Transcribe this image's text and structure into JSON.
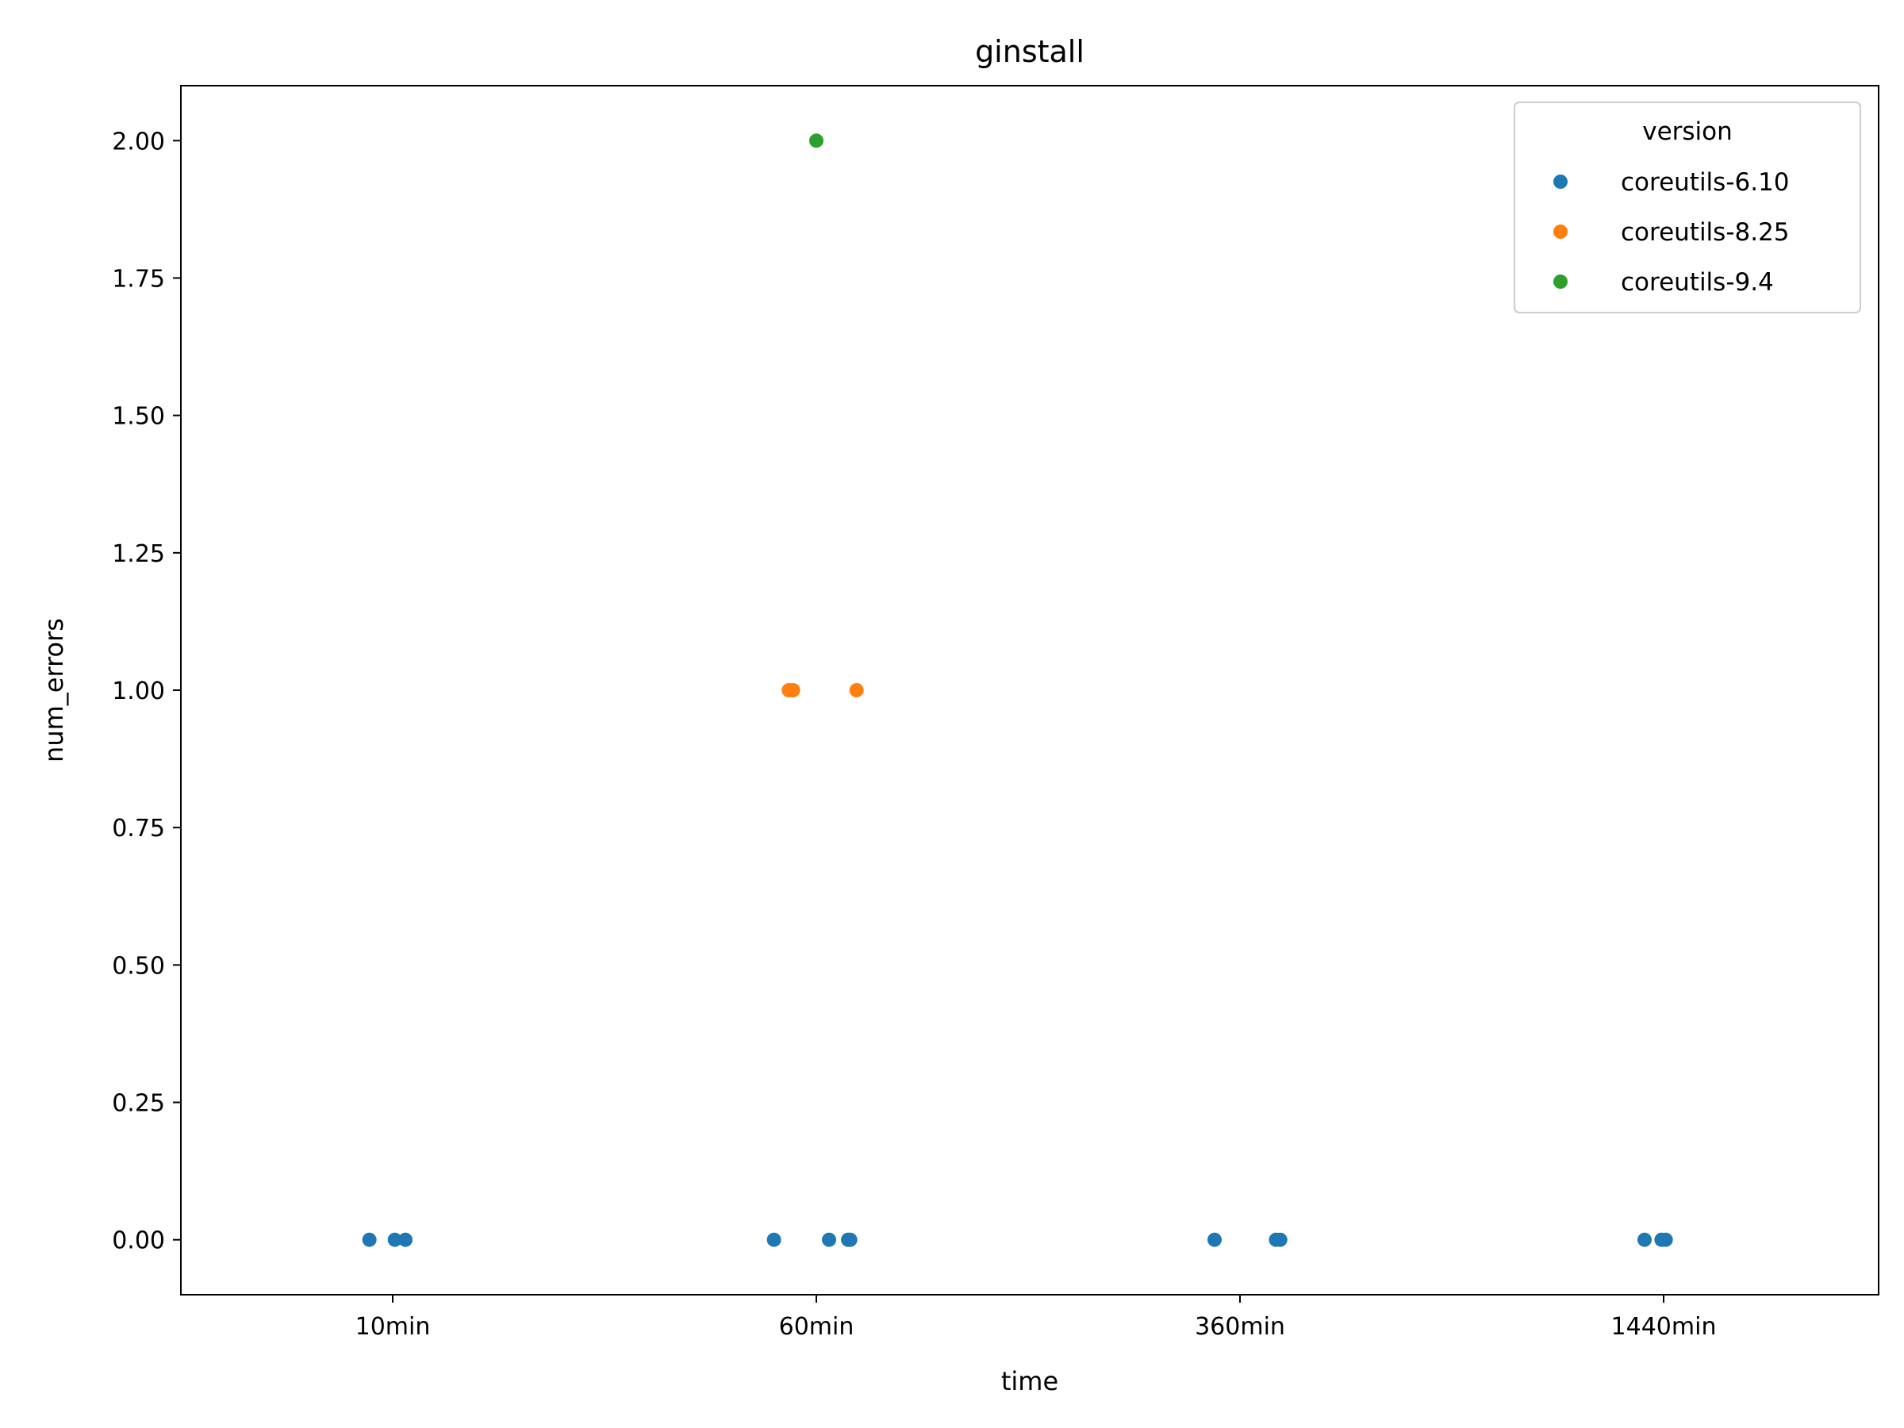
{
  "chart_data": {
    "type": "scatter",
    "title": "ginstall",
    "xlabel": "time",
    "ylabel": "num_errors",
    "categories": [
      "10min",
      "60min",
      "360min",
      "1440min"
    ],
    "ylim": [
      -0.1,
      2.1
    ],
    "yticks": [
      "0.00",
      "0.25",
      "0.50",
      "0.75",
      "1.00",
      "1.25",
      "1.50",
      "1.75",
      "2.00"
    ],
    "grid": false,
    "legend": {
      "title": "version",
      "placement": "top-right"
    },
    "series": [
      {
        "name": "coreutils-6.10",
        "color": "#1f77b4",
        "points": [
          {
            "x": "10min",
            "jitter": -0.055,
            "y": 0
          },
          {
            "x": "10min",
            "jitter": 0.005,
            "y": 0
          },
          {
            "x": "10min",
            "jitter": 0.03,
            "y": 0
          },
          {
            "x": "60min",
            "jitter": -0.1,
            "y": 0
          },
          {
            "x": "60min",
            "jitter": 0.03,
            "y": 0
          },
          {
            "x": "60min",
            "jitter": 0.075,
            "y": 0
          },
          {
            "x": "60min",
            "jitter": 0.08,
            "y": 0
          },
          {
            "x": "360min",
            "jitter": -0.06,
            "y": 0
          },
          {
            "x": "360min",
            "jitter": 0.085,
            "y": 0
          },
          {
            "x": "360min",
            "jitter": 0.095,
            "y": 0
          },
          {
            "x": "1440min",
            "jitter": -0.045,
            "y": 0
          },
          {
            "x": "1440min",
            "jitter": -0.005,
            "y": 0
          },
          {
            "x": "1440min",
            "jitter": 0.005,
            "y": 0
          }
        ]
      },
      {
        "name": "coreutils-8.25",
        "color": "#ff7f0e",
        "points": [
          {
            "x": "60min",
            "jitter": -0.065,
            "y": 1
          },
          {
            "x": "60min",
            "jitter": -0.055,
            "y": 1
          },
          {
            "x": "60min",
            "jitter": 0.095,
            "y": 1
          }
        ]
      },
      {
        "name": "coreutils-9.4",
        "color": "#2ca02c",
        "points": [
          {
            "x": "60min",
            "jitter": 0.0,
            "y": 2
          }
        ]
      }
    ]
  }
}
